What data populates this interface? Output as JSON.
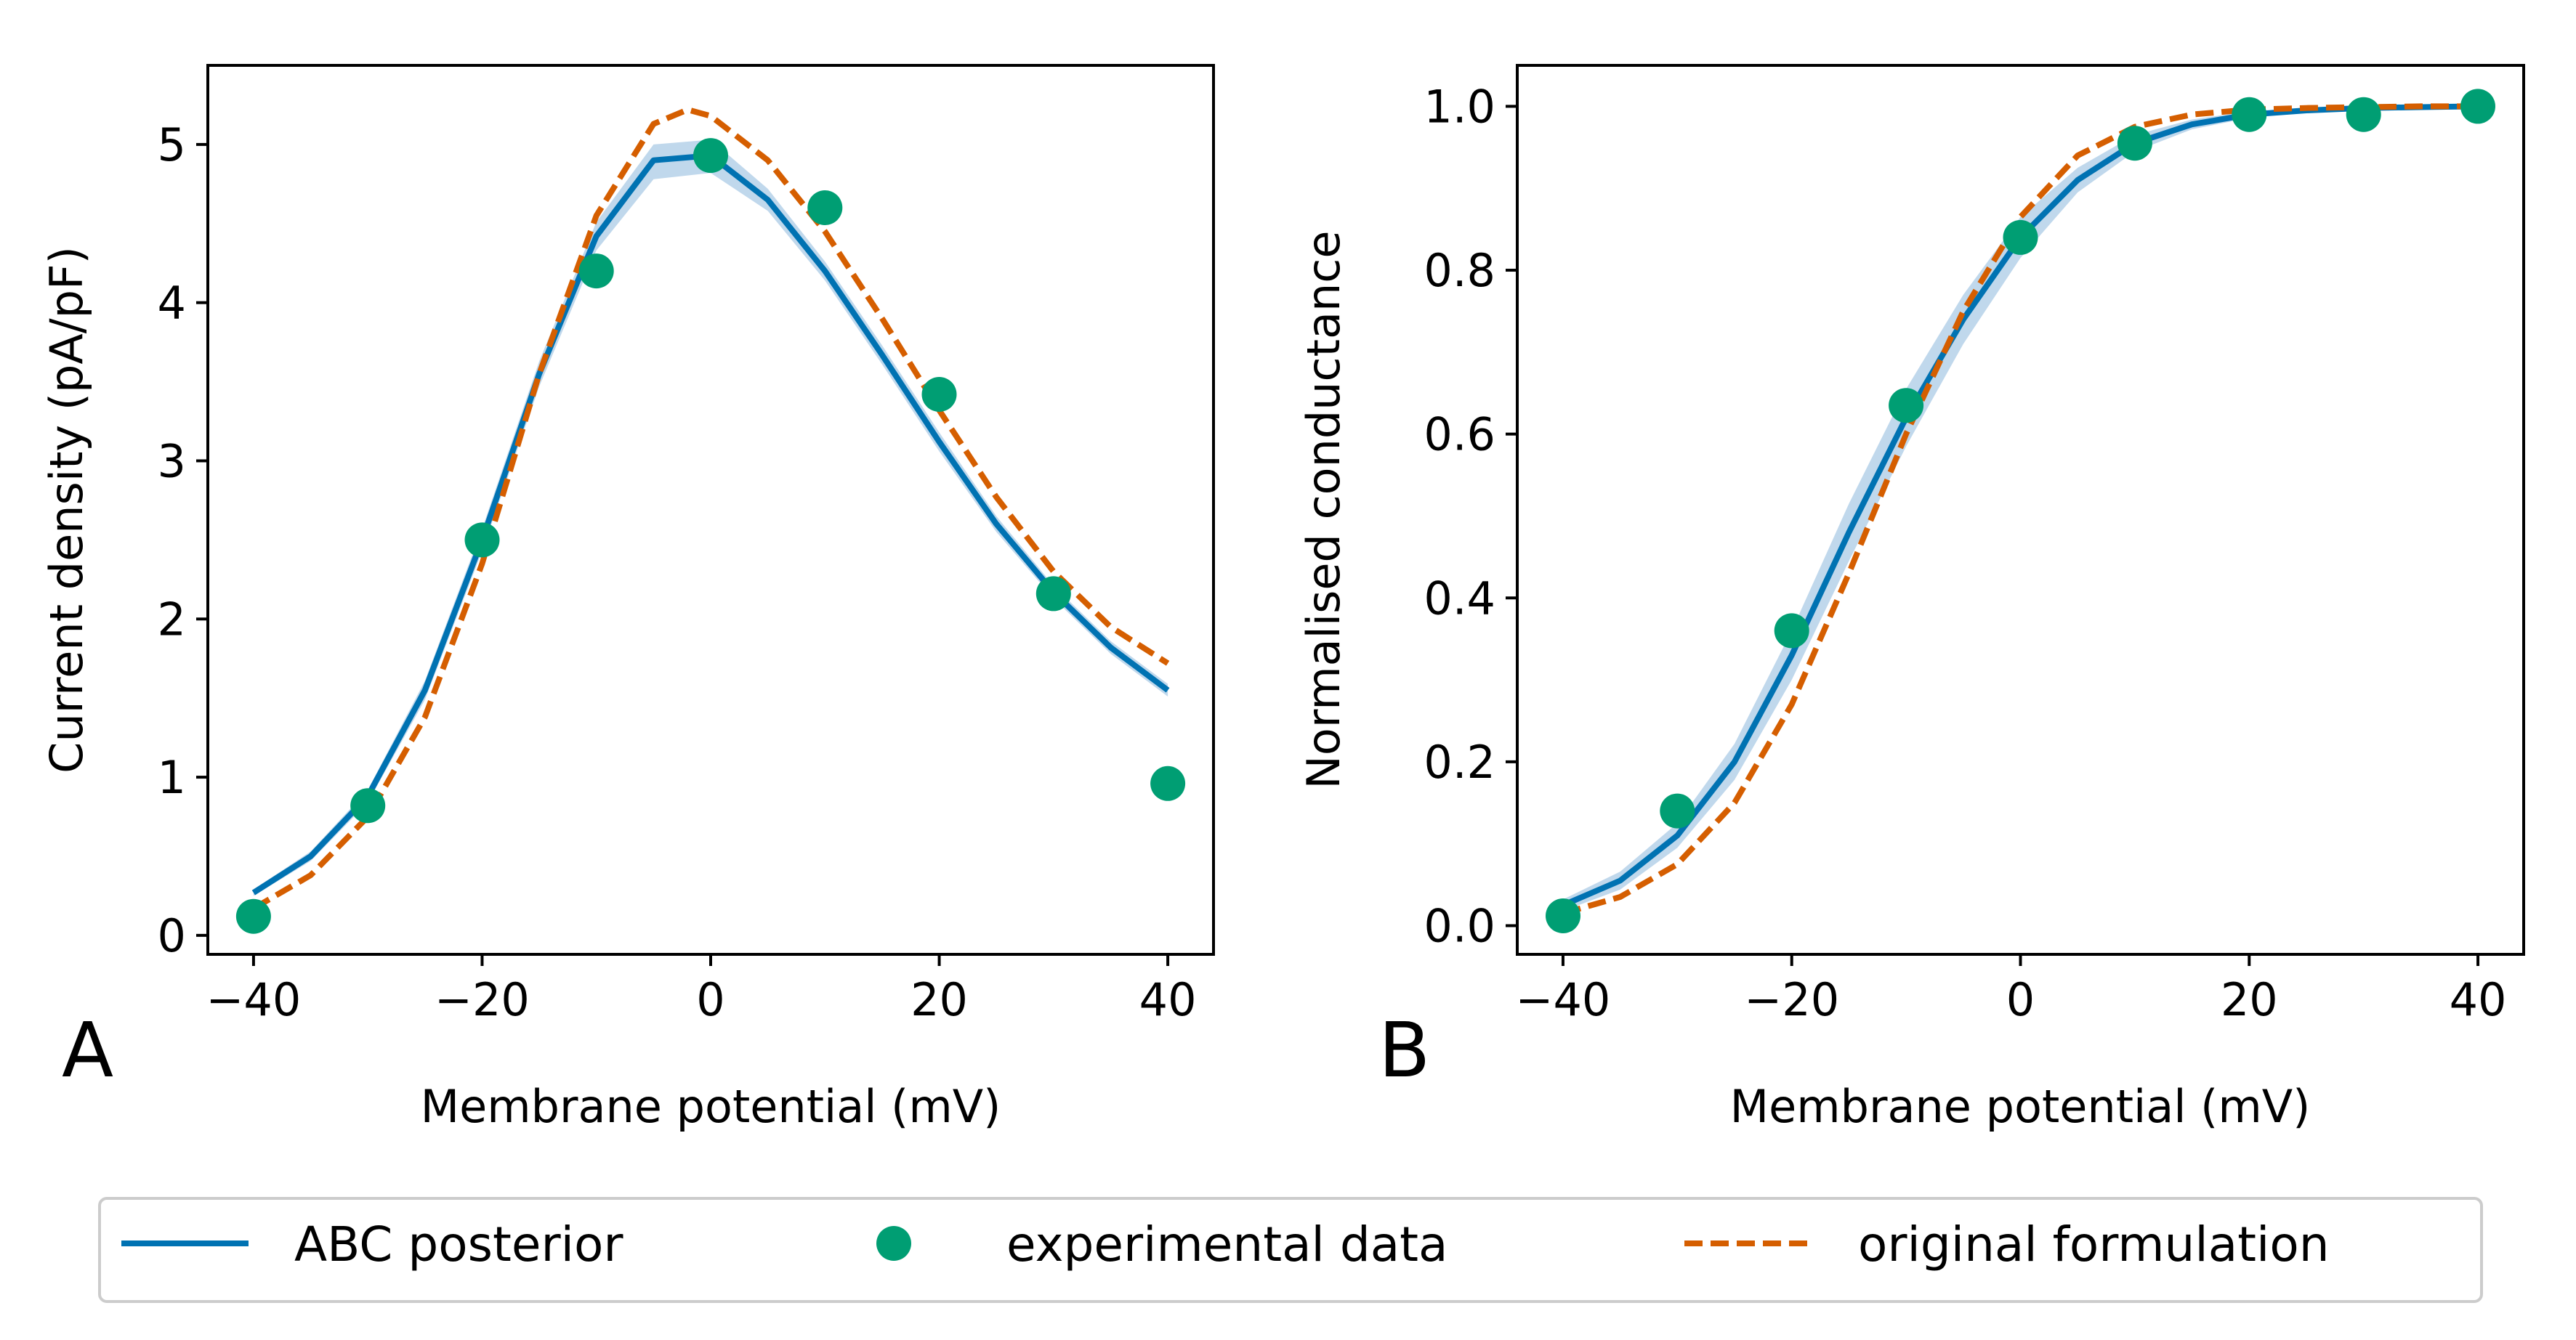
{
  "figure": {
    "legend": {
      "entries": [
        {
          "label": "ABC posterior",
          "color": "#0072b2",
          "style": "solid-line"
        },
        {
          "label": "experimental data",
          "color": "#009e73",
          "style": "marker"
        },
        {
          "label": "original formulation",
          "color": "#d55e00",
          "style": "dashed-line"
        }
      ]
    }
  },
  "chart_data": [
    {
      "panel": "A",
      "type": "line",
      "xlabel": "Membrane potential (mV)",
      "ylabel": "Current density (pA/pF)",
      "xlim": [
        -44,
        44
      ],
      "ylim": [
        -0.12,
        5.5
      ],
      "xticks": [
        -40,
        -20,
        0,
        20,
        40
      ],
      "xtick_labels": [
        "−40",
        "−20",
        "0",
        "20",
        "40"
      ],
      "yticks": [
        0,
        1,
        2,
        3,
        4,
        5
      ],
      "ytick_labels": [
        "0",
        "1",
        "2",
        "3",
        "4",
        "5"
      ],
      "grid": false,
      "series": [
        {
          "name": "ABC posterior",
          "kind": "line",
          "color": "#0072b2",
          "band_color": "#b9d4ea",
          "x": [
            -40,
            -35,
            -30,
            -25,
            -20,
            -15,
            -10,
            -5,
            0,
            5,
            10,
            15,
            20,
            25,
            30,
            35,
            40
          ],
          "y": [
            0.27,
            0.5,
            0.88,
            1.55,
            2.5,
            3.55,
            4.42,
            4.9,
            4.93,
            4.65,
            4.2,
            3.67,
            3.12,
            2.6,
            2.17,
            1.82,
            1.55
          ],
          "band_lower": [
            0.25,
            0.47,
            0.84,
            1.49,
            2.43,
            3.47,
            4.33,
            4.78,
            4.82,
            4.58,
            4.14,
            3.61,
            3.06,
            2.55,
            2.13,
            1.78,
            1.51
          ],
          "band_upper": [
            0.29,
            0.53,
            0.92,
            1.61,
            2.57,
            3.63,
            4.51,
            5.0,
            5.03,
            4.72,
            4.26,
            3.73,
            3.18,
            2.65,
            2.21,
            1.86,
            1.59
          ]
        },
        {
          "name": "experimental data",
          "kind": "scatter",
          "color": "#009e73",
          "x": [
            -40,
            -30,
            -20,
            -10,
            0,
            10,
            20,
            30,
            40
          ],
          "y": [
            0.12,
            0.82,
            2.5,
            4.2,
            4.93,
            4.6,
            3.42,
            2.16,
            0.96
          ]
        },
        {
          "name": "original formulation",
          "kind": "line",
          "dashed": true,
          "color": "#d55e00",
          "x": [
            -40,
            -35,
            -30,
            -25,
            -20,
            -15,
            -10,
            -5,
            -2,
            0,
            5,
            10,
            15,
            20,
            25,
            30,
            35,
            40
          ],
          "y": [
            0.17,
            0.38,
            0.75,
            1.38,
            2.35,
            3.55,
            4.55,
            5.13,
            5.22,
            5.18,
            4.9,
            4.45,
            3.9,
            3.32,
            2.77,
            2.3,
            1.95,
            1.72
          ]
        }
      ]
    },
    {
      "panel": "B",
      "type": "line",
      "xlabel": "Membrane potential (mV)",
      "ylabel": "Normalised conductance",
      "xlim": [
        -44,
        44
      ],
      "ylim": [
        -0.035,
        1.05
      ],
      "xticks": [
        -40,
        -20,
        0,
        20,
        40
      ],
      "xtick_labels": [
        "−40",
        "−20",
        "0",
        "20",
        "40"
      ],
      "yticks": [
        0,
        0.2,
        0.4,
        0.6,
        0.8,
        1.0
      ],
      "ytick_labels": [
        "0.0",
        "0.2",
        "0.4",
        "0.6",
        "0.8",
        "1.0"
      ],
      "grid": false,
      "series": [
        {
          "name": "ABC posterior",
          "kind": "line",
          "color": "#0072b2",
          "band_color": "#b9d4ea",
          "x": [
            -40,
            -35,
            -30,
            -25,
            -20,
            -15,
            -10,
            -5,
            0,
            5,
            10,
            15,
            20,
            25,
            30,
            35,
            40
          ],
          "y": [
            0.025,
            0.055,
            0.11,
            0.2,
            0.33,
            0.48,
            0.62,
            0.74,
            0.84,
            0.91,
            0.955,
            0.978,
            0.99,
            0.995,
            0.998,
            0.999,
            1.0
          ],
          "band_lower": [
            0.018,
            0.044,
            0.095,
            0.178,
            0.3,
            0.445,
            0.585,
            0.71,
            0.815,
            0.895,
            0.945,
            0.972,
            0.986,
            0.993,
            0.997,
            0.999,
            1.0
          ],
          "band_upper": [
            0.032,
            0.066,
            0.125,
            0.222,
            0.36,
            0.515,
            0.655,
            0.77,
            0.865,
            0.925,
            0.965,
            0.984,
            0.994,
            0.997,
            0.999,
            1.0,
            1.0
          ]
        },
        {
          "name": "experimental data",
          "kind": "scatter",
          "color": "#009e73",
          "x": [
            -40,
            -30,
            -20,
            -10,
            0,
            10,
            20,
            30,
            40
          ],
          "y": [
            0.012,
            0.14,
            0.36,
            0.635,
            0.84,
            0.955,
            0.99,
            0.99,
            1.0
          ]
        },
        {
          "name": "original formulation",
          "kind": "line",
          "dashed": true,
          "color": "#d55e00",
          "x": [
            -40,
            -35,
            -30,
            -25,
            -20,
            -15,
            -10,
            -5,
            0,
            5,
            10,
            15,
            20,
            25,
            30,
            35,
            40
          ],
          "y": [
            0.015,
            0.035,
            0.075,
            0.15,
            0.27,
            0.43,
            0.6,
            0.75,
            0.865,
            0.94,
            0.975,
            0.99,
            0.996,
            0.998,
            0.999,
            1.0,
            1.0
          ]
        }
      ]
    }
  ]
}
